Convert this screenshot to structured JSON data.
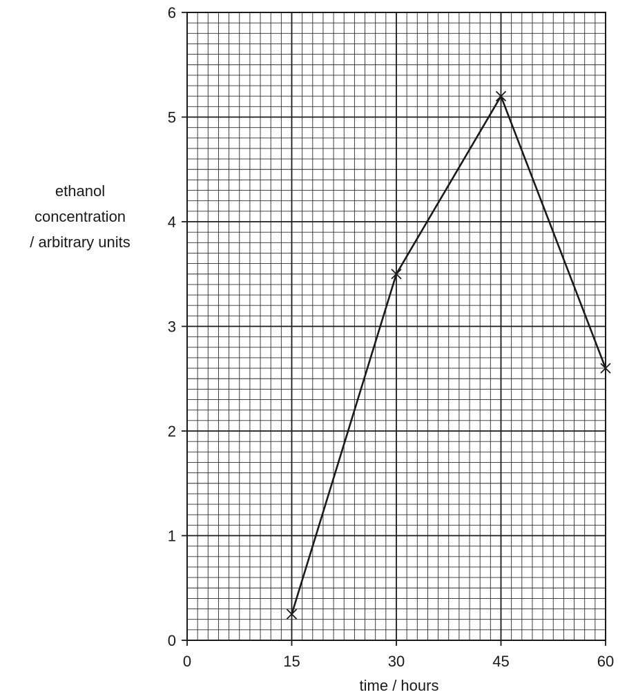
{
  "chart_data": {
    "type": "line",
    "xlabel": "time / hours",
    "ylabel_lines": [
      "ethanol",
      "concentration",
      "/ arbitrary units"
    ],
    "xlim": [
      0,
      60
    ],
    "ylim": [
      0,
      6
    ],
    "x_ticks": [
      0,
      15,
      30,
      45,
      60
    ],
    "y_ticks": [
      0,
      1,
      2,
      3,
      4,
      5,
      6
    ],
    "grid": true,
    "minor_divisions_per_major": 10,
    "marker": "cross",
    "line_color": "#1a1a1a",
    "series": [
      {
        "x": [
          15,
          30,
          45,
          60
        ],
        "values": [
          0.25,
          3.5,
          5.2,
          2.6
        ]
      }
    ]
  }
}
